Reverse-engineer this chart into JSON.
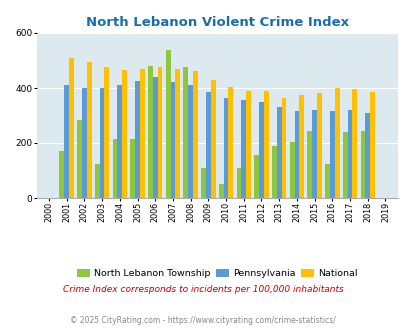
{
  "title": "North Lebanon Violent Crime Index",
  "years": [
    2000,
    2001,
    2002,
    2003,
    2004,
    2005,
    2006,
    2007,
    2008,
    2009,
    2010,
    2011,
    2012,
    2013,
    2014,
    2015,
    2016,
    2017,
    2018,
    2019
  ],
  "north_lebanon": [
    0,
    170,
    285,
    125,
    215,
    215,
    480,
    540,
    475,
    110,
    50,
    110,
    155,
    190,
    205,
    245,
    125,
    240,
    245,
    0
  ],
  "pennsylvania": [
    0,
    410,
    400,
    400,
    410,
    425,
    440,
    420,
    410,
    385,
    365,
    355,
    350,
    330,
    315,
    320,
    315,
    320,
    310,
    0
  ],
  "national": [
    0,
    510,
    495,
    475,
    465,
    470,
    475,
    470,
    460,
    430,
    405,
    390,
    390,
    365,
    375,
    380,
    400,
    395,
    385,
    0
  ],
  "bar_colors": {
    "north_lebanon": "#8dc63f",
    "pennsylvania": "#5b9bd5",
    "national": "#ffc000"
  },
  "bg_color": "#dce9ee",
  "ylim": [
    0,
    600
  ],
  "yticks": [
    0,
    200,
    400,
    600
  ],
  "legend_labels": [
    "North Lebanon Township",
    "Pennsylvania",
    "National"
  ],
  "footnote1": "Crime Index corresponds to incidents per 100,000 inhabitants",
  "footnote2": "© 2025 CityRating.com - https://www.cityrating.com/crime-statistics/",
  "title_color": "#1a6fa8",
  "footnote1_color": "#cc0000",
  "footnote2_color": "#888888"
}
